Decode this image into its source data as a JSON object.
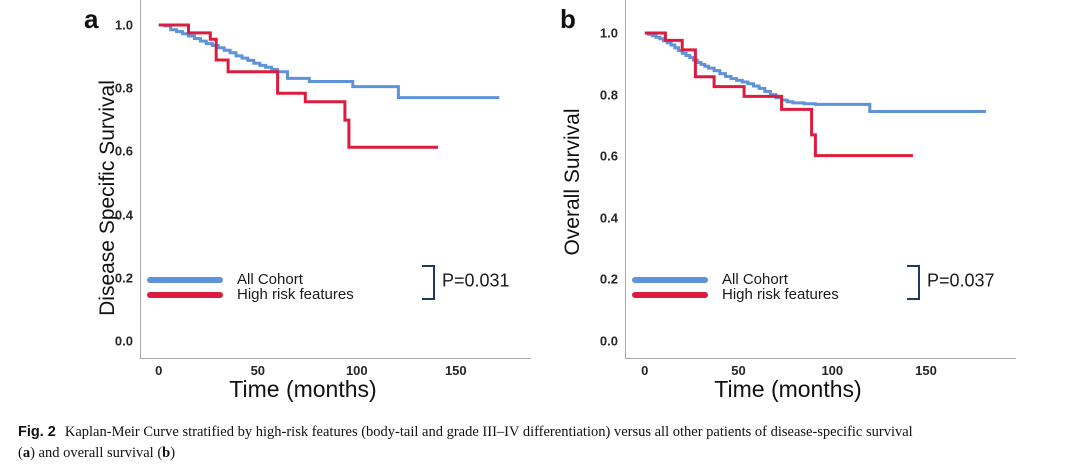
{
  "colors": {
    "all_cohort_blue": "#5E92D9",
    "high_risk_red": "#DB1C3F",
    "bracket": "#1F3864",
    "axis_gray": "#A6A6A6"
  },
  "caption": {
    "fig_label": "Fig. 2",
    "text1": "Kaplan-Meir Curve stratified by high-risk features (body-tail and grade III–IV differentiation) versus all other patients of disease-specific survival",
    "line2_open": "(",
    "bold_a": "a",
    "text2": ") and overall survival (",
    "bold_b": "b",
    "text3": ")"
  },
  "chart_data": [
    {
      "id": "a",
      "panel_label": "a",
      "type": "line",
      "subtype": "kaplan-meier-step",
      "title": "",
      "xlabel": "Time (months)",
      "ylabel": "Disease Specific Survival",
      "p_value": "P=0.031",
      "xlim": [
        -9,
        188
      ],
      "ylim": [
        -0.054,
        1.079
      ],
      "grid": false,
      "legend_position": "lower-left",
      "x_ticks": [
        {
          "label": "0",
          "value": 0
        },
        {
          "label": "50",
          "value": 50
        },
        {
          "label": "100",
          "value": 100
        },
        {
          "label": "150",
          "value": 150
        }
      ],
      "y_ticks": [
        {
          "label": "1.0",
          "value": 1.0
        },
        {
          "label": "0.8",
          "value": 0.8
        },
        {
          "label": "0.6",
          "value": 0.6
        },
        {
          "label": "0.4",
          "value": 0.4
        },
        {
          "label": "0.2",
          "value": 0.2
        },
        {
          "label": "0.0",
          "value": 0.0
        }
      ],
      "series": [
        {
          "name": "All Cohort",
          "color": "#5E92D9",
          "points": [
            [
              0,
              1.0
            ],
            [
              3,
              0.997
            ],
            [
              6,
              0.985
            ],
            [
              9,
              0.979
            ],
            [
              12,
              0.972
            ],
            [
              15,
              0.965
            ],
            [
              18,
              0.957
            ],
            [
              21,
              0.949
            ],
            [
              24,
              0.941
            ],
            [
              27,
              0.935
            ],
            [
              30,
              0.928
            ],
            [
              33,
              0.92
            ],
            [
              36,
              0.912
            ],
            [
              39,
              0.902
            ],
            [
              42,
              0.895
            ],
            [
              45,
              0.888
            ],
            [
              48,
              0.879
            ],
            [
              51,
              0.872
            ],
            [
              54,
              0.866
            ],
            [
              57,
              0.859
            ],
            [
              60,
              0.852
            ],
            [
              65,
              0.831
            ],
            [
              76,
              0.821
            ],
            [
              98,
              0.805
            ],
            [
              121,
              0.77
            ],
            [
              172,
              0.77
            ]
          ]
        },
        {
          "name": "High risk features",
          "color": "#DB1C3F",
          "points": [
            [
              0,
              1.0
            ],
            [
              15,
              0.975
            ],
            [
              26,
              0.955
            ],
            [
              29,
              0.889
            ],
            [
              35,
              0.852
            ],
            [
              60,
              0.784
            ],
            [
              74,
              0.757
            ],
            [
              94,
              0.699
            ],
            [
              96,
              0.613
            ],
            [
              141,
              0.613
            ]
          ]
        }
      ]
    },
    {
      "id": "b",
      "panel_label": "b",
      "type": "line",
      "subtype": "kaplan-meier-step",
      "title": "",
      "xlabel": "Time (months)",
      "ylabel": "Overall Survival",
      "p_value": "P=0.037",
      "xlim": [
        -10,
        198
      ],
      "ylim": [
        -0.055,
        1.107
      ],
      "grid": false,
      "legend_position": "lower-left",
      "x_ticks": [
        {
          "label": "0",
          "value": 0
        },
        {
          "label": "50",
          "value": 50
        },
        {
          "label": "100",
          "value": 100
        },
        {
          "label": "150",
          "value": 150
        }
      ],
      "y_ticks": [
        {
          "label": "1.0",
          "value": 1.0
        },
        {
          "label": "0.8",
          "value": 0.8
        },
        {
          "label": "0.6",
          "value": 0.6
        },
        {
          "label": "0.4",
          "value": 0.4
        },
        {
          "label": "0.2",
          "value": 0.2
        },
        {
          "label": "0.0",
          "value": 0.0
        }
      ],
      "series": [
        {
          "name": "All Cohort",
          "color": "#5E92D9",
          "points": [
            [
              0,
              1.0
            ],
            [
              2,
              0.996
            ],
            [
              4,
              0.991
            ],
            [
              6,
              0.986
            ],
            [
              8,
              0.981
            ],
            [
              10,
              0.975
            ],
            [
              12,
              0.968
            ],
            [
              14,
              0.961
            ],
            [
              16,
              0.952
            ],
            [
              18,
              0.943
            ],
            [
              20,
              0.934
            ],
            [
              22,
              0.927
            ],
            [
              24,
              0.92
            ],
            [
              26,
              0.912
            ],
            [
              28,
              0.904
            ],
            [
              30,
              0.898
            ],
            [
              32,
              0.892
            ],
            [
              34,
              0.886
            ],
            [
              37,
              0.878
            ],
            [
              40,
              0.868
            ],
            [
              43,
              0.859
            ],
            [
              46,
              0.852
            ],
            [
              49,
              0.846
            ],
            [
              52,
              0.841
            ],
            [
              55,
              0.835
            ],
            [
              58,
              0.828
            ],
            [
              61,
              0.82
            ],
            [
              64,
              0.81
            ],
            [
              67,
              0.8
            ],
            [
              70,
              0.79
            ],
            [
              73,
              0.782
            ],
            [
              76,
              0.777
            ],
            [
              79,
              0.773
            ],
            [
              85,
              0.77
            ],
            [
              91,
              0.768
            ],
            [
              120,
              0.745
            ],
            [
              182,
              0.745
            ]
          ]
        },
        {
          "name": "High risk features",
          "color": "#DB1C3F",
          "points": [
            [
              0,
              1.0
            ],
            [
              11,
              0.976
            ],
            [
              20,
              0.945
            ],
            [
              27,
              0.858
            ],
            [
              37,
              0.826
            ],
            [
              53,
              0.794
            ],
            [
              73,
              0.752
            ],
            [
              89,
              0.669
            ],
            [
              91,
              0.602
            ],
            [
              143,
              0.602
            ]
          ]
        }
      ]
    }
  ]
}
